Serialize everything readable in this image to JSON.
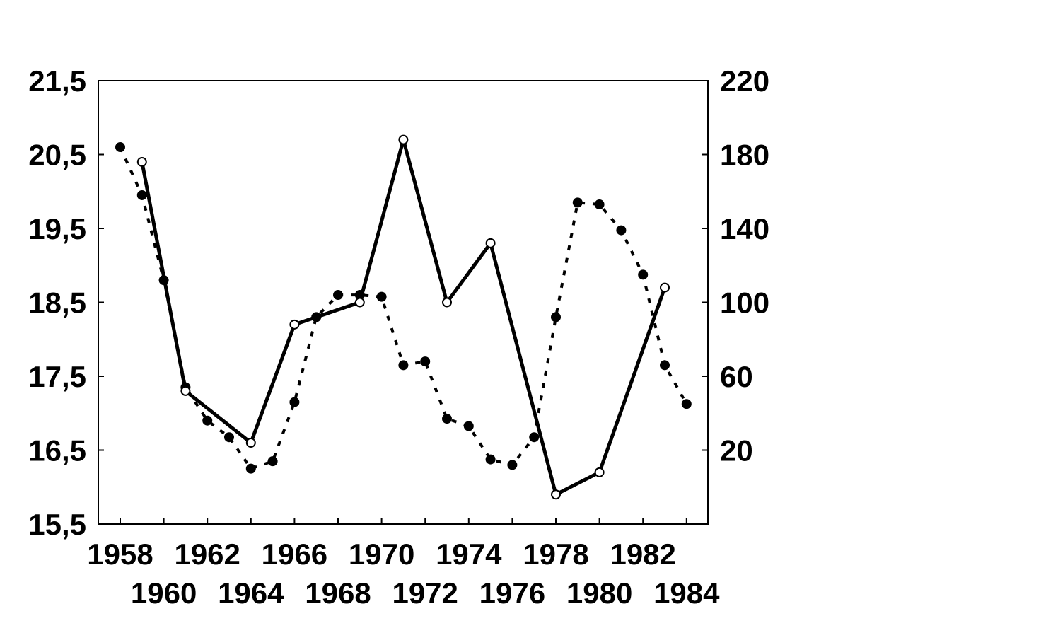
{
  "chart_data": {
    "type": "line",
    "title": "",
    "xlabel": "",
    "ylabel_left": "",
    "ylabel_right": "",
    "xlim": [
      1958,
      1984
    ],
    "ylim_left": [
      15.5,
      21.5
    ],
    "ylim_right": [
      -20,
      220
    ],
    "grid": false,
    "legend": "none",
    "x_ticks_row1": [
      "1958",
      "1962",
      "1966",
      "1970",
      "1974",
      "1978",
      "1982"
    ],
    "x_ticks_row2": [
      "1960",
      "1964",
      "1968",
      "1972",
      "1976",
      "1980",
      "1984"
    ],
    "y_ticks_left": [
      "21,5",
      "20,5",
      "19,5",
      "18,5",
      "17,5",
      "16,5",
      "15,5"
    ],
    "y_ticks_right": [
      "220",
      "180",
      "140",
      "100",
      "60",
      "20"
    ],
    "series": [
      {
        "axis": "left",
        "style": "solid",
        "marker": "open-circle",
        "color": "#000000",
        "x": [
          1959,
          1961,
          1964,
          1966,
          1969,
          1971,
          1973,
          1975,
          1978,
          1980,
          1983
        ],
        "y": [
          20.4,
          17.3,
          16.6,
          18.2,
          18.5,
          20.7,
          18.5,
          19.3,
          15.9,
          16.2,
          18.7
        ]
      },
      {
        "axis": "right",
        "style": "dotted",
        "marker": "filled-circle",
        "color": "#000000",
        "x": [
          1958,
          1959,
          1960,
          1961,
          1962,
          1963,
          1964,
          1965,
          1966,
          1967,
          1968,
          1969,
          1970,
          1971,
          1972,
          1973,
          1974,
          1975,
          1976,
          1977,
          1978,
          1979,
          1980,
          1981,
          1982,
          1983,
          1984
        ],
        "y": [
          184,
          158,
          112,
          54,
          36,
          27,
          10,
          14,
          46,
          92,
          104,
          104,
          103,
          66,
          68,
          37,
          33,
          15,
          12,
          27,
          92,
          154,
          153,
          139,
          115,
          66,
          45
        ]
      }
    ]
  }
}
